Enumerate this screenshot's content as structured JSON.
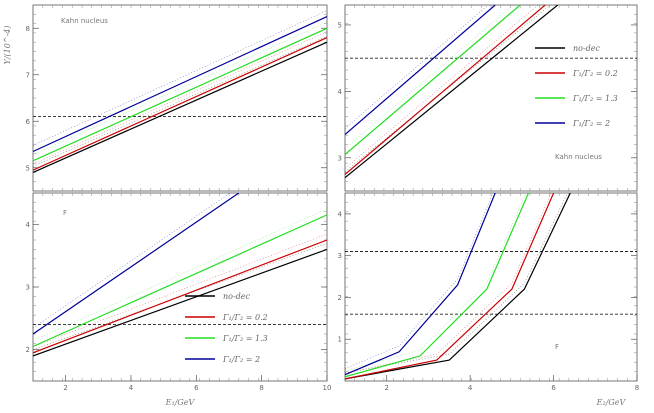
{
  "chart_data": [
    {
      "type": "line",
      "panel": "top-left",
      "annotation": "Kahn nucleus",
      "xlim": [
        1,
        10
      ],
      "ylim": [
        4.5,
        8.5
      ],
      "yticks": [
        5,
        6,
        7,
        8
      ],
      "ylabel": "Y/(10^-4)",
      "threshold": 6.1,
      "series": [
        {
          "name": "no-dec",
          "color": "#000000",
          "values": [
            [
              1,
              4.9
            ],
            [
              10,
              7.7
            ]
          ]
        },
        {
          "name": "Γ₁/Γ₂ = 0.2",
          "color": "#cc0000",
          "values": [
            [
              1,
              4.95
            ],
            [
              10,
              7.8
            ]
          ]
        },
        {
          "name": "Γ₁/Γ₂ = 1.3",
          "color": "#22dd22",
          "values": [
            [
              1,
              5.15
            ],
            [
              10,
              8.0
            ]
          ]
        },
        {
          "name": "Γ₁/Γ₂ = 2",
          "color": "#000099",
          "values": [
            [
              1,
              5.35
            ],
            [
              10,
              8.25
            ]
          ]
        }
      ]
    },
    {
      "type": "line",
      "panel": "top-right",
      "annotation": "Kahn nucleus",
      "xlim": [
        1,
        8
      ],
      "ylim": [
        2.5,
        5.3
      ],
      "yticks": [
        3,
        4,
        5
      ],
      "threshold": 4.5,
      "legend": [
        "no-dec",
        "Γ₁/Γ₂ = 0.2",
        "Γ₁/Γ₂ = 1.3",
        "Γ₁/Γ₂ = 2"
      ],
      "series": [
        {
          "name": "no-dec",
          "color": "#000000",
          "values": [
            [
              1,
              2.7
            ],
            [
              6.1,
              5.3
            ]
          ]
        },
        {
          "name": "Γ₁/Γ₂ = 0.2",
          "color": "#cc0000",
          "values": [
            [
              1,
              2.75
            ],
            [
              5.8,
              5.3
            ]
          ]
        },
        {
          "name": "Γ₁/Γ₂ = 1.3",
          "color": "#22dd22",
          "values": [
            [
              1,
              3.05
            ],
            [
              5.2,
              5.3
            ]
          ]
        },
        {
          "name": "Γ₁/Γ₂ = 2",
          "color": "#000099",
          "values": [
            [
              1,
              3.35
            ],
            [
              4.6,
              5.3
            ]
          ]
        }
      ]
    },
    {
      "type": "line",
      "panel": "bottom-left",
      "annotation": "F",
      "xlabel": "E₁/GeV",
      "xlim": [
        1,
        10
      ],
      "xticks": [
        2,
        4,
        6,
        8,
        10
      ],
      "ylim": [
        1.5,
        4.5
      ],
      "yticks": [
        2,
        3,
        4
      ],
      "threshold": 2.4,
      "legend": [
        "no-dec",
        "Γ₁/Γ₂ = 0.2",
        "Γ₁/Γ₂ = 1.3",
        "Γ₁/Γ₂ = 2"
      ],
      "series": [
        {
          "name": "no-dec",
          "color": "#000000",
          "values": [
            [
              1,
              1.9
            ],
            [
              10,
              3.6
            ]
          ]
        },
        {
          "name": "Γ₁/Γ₂ = 0.2",
          "color": "#cc0000",
          "values": [
            [
              1,
              1.95
            ],
            [
              10,
              3.75
            ]
          ]
        },
        {
          "name": "Γ₁/Γ₂ = 1.3",
          "color": "#22dd22",
          "values": [
            [
              1,
              2.05
            ],
            [
              10,
              4.15
            ]
          ]
        },
        {
          "name": "Γ₁/Γ₂ = 2",
          "color": "#000099",
          "values": [
            [
              1,
              2.25
            ],
            [
              7.3,
              4.5
            ]
          ]
        }
      ]
    },
    {
      "type": "line",
      "panel": "bottom-right",
      "annotation": "F",
      "xlabel": "E₂/GeV",
      "xlim": [
        1,
        8
      ],
      "xticks": [
        2,
        4,
        6,
        8
      ],
      "ylim": [
        0,
        4.5
      ],
      "yticks": [
        1,
        2,
        3,
        4
      ],
      "thresholds": [
        1.6,
        3.1
      ],
      "series": [
        {
          "name": "no-dec",
          "color": "#000000",
          "values": [
            [
              1,
              0.05
            ],
            [
              3.5,
              0.5
            ],
            [
              5.3,
              2.2
            ],
            [
              6.4,
              4.5
            ]
          ]
        },
        {
          "name": "Γ₁/Γ₂ = 0.2",
          "color": "#cc0000",
          "values": [
            [
              1,
              0.05
            ],
            [
              3.2,
              0.5
            ],
            [
              5.0,
              2.2
            ],
            [
              6.0,
              4.5
            ]
          ]
        },
        {
          "name": "Γ₁/Γ₂ = 1.3",
          "color": "#22dd22",
          "values": [
            [
              1,
              0.1
            ],
            [
              2.8,
              0.6
            ],
            [
              4.4,
              2.2
            ],
            [
              5.4,
              4.5
            ]
          ]
        },
        {
          "name": "Γ₁/Γ₂ = 2",
          "color": "#000099",
          "values": [
            [
              1,
              0.15
            ],
            [
              2.3,
              0.7
            ],
            [
              3.7,
              2.3
            ],
            [
              4.6,
              4.5
            ]
          ]
        }
      ]
    }
  ]
}
